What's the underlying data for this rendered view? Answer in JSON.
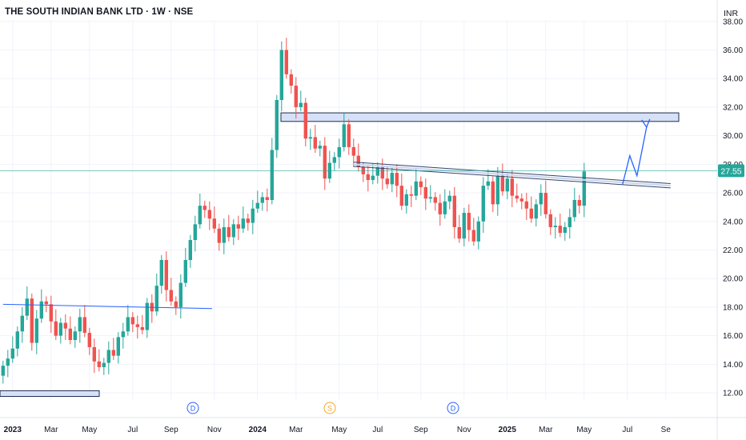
{
  "header": {
    "symbol_title": "THE SOUTH INDIAN BANK LTD · 1W · NSE",
    "currency": "INR"
  },
  "price_label": "27.55",
  "colors": {
    "up": "#26a69a",
    "down": "#ef5350",
    "zone_fill": "#d6e1f7",
    "zone_stroke": "#1f2d4d",
    "trendline": "#2962ff",
    "price_line": "#26a69a",
    "arrow": "#2962ff",
    "event_dividend": "#2962ff",
    "event_split": "#f5a623"
  },
  "events": [
    {
      "label": "D",
      "color": "#2962ff",
      "date": "Aug 2023"
    },
    {
      "label": "S",
      "color": "#f5a623",
      "date": "Feb 2024"
    },
    {
      "label": "D",
      "color": "#2962ff",
      "date": "Aug 2024"
    }
  ],
  "chart_data": {
    "type": "candlestick",
    "interval": "1W",
    "ylim": [
      11.5,
      38.1
    ],
    "y_ticks": [
      "38.00",
      "36.00",
      "34.00",
      "32.00",
      "30.00",
      "28.00",
      "26.00",
      "24.00",
      "22.00",
      "20.00",
      "18.00",
      "16.00",
      "14.00",
      "12.00"
    ],
    "x_ticks": [
      {
        "label": "2023",
        "bold": true,
        "week": 2
      },
      {
        "label": "Mar",
        "bold": false,
        "week": 10
      },
      {
        "label": "May",
        "bold": false,
        "week": 18
      },
      {
        "label": "Jul",
        "bold": false,
        "week": 27
      },
      {
        "label": "Sep",
        "bold": false,
        "week": 35
      },
      {
        "label": "Nov",
        "bold": false,
        "week": 44
      },
      {
        "label": "2024",
        "bold": true,
        "week": 53
      },
      {
        "label": "Mar",
        "bold": false,
        "week": 61
      },
      {
        "label": "May",
        "bold": false,
        "week": 70
      },
      {
        "label": "Jul",
        "bold": false,
        "week": 78
      },
      {
        "label": "Sep",
        "bold": false,
        "week": 87
      },
      {
        "label": "Nov",
        "bold": false,
        "week": 96
      },
      {
        "label": "2025",
        "bold": true,
        "week": 105
      },
      {
        "label": "Mar",
        "bold": false,
        "week": 113
      },
      {
        "label": "May",
        "bold": false,
        "week": 121
      },
      {
        "label": "Jul",
        "bold": false,
        "week": 130
      },
      {
        "label": "Se",
        "bold": false,
        "week": 138
      }
    ],
    "candles_close": [
      13.9,
      14.4,
      15.1,
      16.3,
      17.4,
      18.6,
      15.5,
      17.2,
      18.4,
      18.2,
      17.0,
      16.0,
      16.9,
      16.5,
      15.7,
      16.3,
      17.3,
      16.2,
      15.2,
      14.2,
      13.8,
      14.1,
      15.0,
      14.6,
      15.9,
      16.3,
      17.3,
      16.8,
      16.6,
      16.4,
      18.3,
      17.7,
      19.5,
      21.3,
      19.2,
      18.4,
      18.0,
      19.7,
      21.3,
      22.7,
      23.8,
      25.1,
      24.8,
      24.2,
      23.5,
      22.5,
      23.6,
      22.9,
      23.8,
      23.5,
      24.2,
      23.9,
      24.9,
      25.3,
      25.7,
      25.5,
      29.0,
      32.5,
      36.0,
      34.3,
      33.5,
      32.0,
      32.3,
      29.8,
      29.9,
      29.1,
      29.3,
      27.0,
      28.1,
      28.5,
      29.2,
      30.8,
      29.2,
      28.6,
      27.8,
      27.3,
      26.9,
      27.2,
      27.8,
      27.0,
      26.6,
      27.4,
      26.5,
      25.1,
      25.9,
      25.8,
      26.8,
      26.4,
      25.6,
      25.7,
      25.3,
      24.5,
      25.4,
      25.8,
      23.6,
      22.8,
      24.6,
      23.4,
      22.6,
      24.0,
      26.5,
      26.8,
      25.2,
      27.2,
      26.1,
      27.0,
      25.8,
      25.6,
      25.4,
      24.9,
      24.2,
      25.2,
      26.0,
      24.5,
      23.6,
      23.7,
      23.2,
      23.6,
      24.3,
      25.5,
      25.1,
      27.5
    ],
    "last_close": 27.55,
    "resistance_zone": [
      31.0,
      31.6
    ],
    "support_zone": [
      11.75,
      12.15
    ],
    "trendlines": [
      {
        "name": "upper descending trendline",
        "from": [
          73,
          28.0
        ],
        "to": [
          139,
          26.5
        ]
      },
      {
        "name": "horizontal line",
        "from": [
          0,
          18.2
        ],
        "to": [
          42,
          17.9
        ]
      }
    ],
    "projection": [
      [
        129,
        26.6
      ],
      [
        130.5,
        28.6
      ],
      [
        132,
        27.2
      ],
      [
        134,
        30.6
      ]
    ]
  }
}
